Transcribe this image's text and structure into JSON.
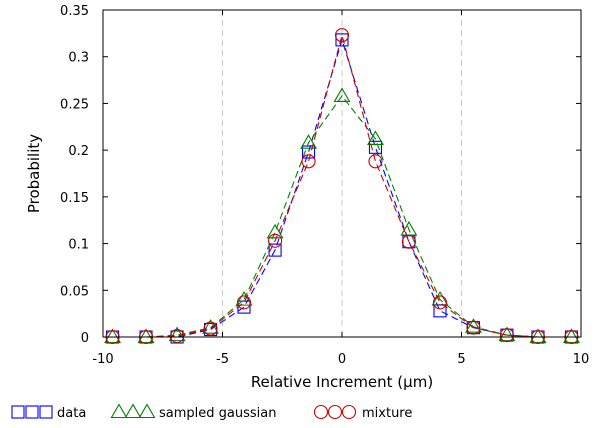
{
  "chart_data": {
    "type": "line",
    "title": "",
    "xlabel": "Relative Increment (μm)",
    "ylabel": "Probability",
    "xlim": [
      -10,
      10
    ],
    "ylim": [
      0,
      0.35
    ],
    "xticks": [
      -10,
      -5,
      0,
      5,
      10
    ],
    "xtick_labels": [
      "-10",
      "-5",
      "0",
      "5",
      "10"
    ],
    "yticks": [
      0,
      0.05,
      0.1,
      0.15,
      0.2,
      0.25,
      0.3,
      0.35
    ],
    "ytick_labels": [
      "0",
      "0.05",
      "0.1",
      "0.15",
      "0.2",
      "0.25",
      "0.3",
      "0.35"
    ],
    "grid": {
      "vertical": true,
      "horizontal": false
    },
    "legend_position": "bottom",
    "x": [
      -9.6,
      -8.2,
      -6.9,
      -5.5,
      -4.1,
      -2.8,
      -1.4,
      0,
      1.4,
      2.8,
      4.1,
      5.5,
      6.9,
      8.2,
      9.6
    ],
    "series": [
      {
        "name": "data",
        "marker": "square",
        "color": "#0000ff",
        "values": [
          0.0,
          0.0,
          0.0,
          0.008,
          0.032,
          0.093,
          0.198,
          0.318,
          0.203,
          0.102,
          0.028,
          0.01,
          0.002,
          0.0,
          0.0
        ]
      },
      {
        "name": "sampled gaussian",
        "marker": "triangle",
        "color": "#008000",
        "values": [
          0.0,
          0.0,
          0.002,
          0.01,
          0.04,
          0.112,
          0.208,
          0.258,
          0.212,
          0.115,
          0.04,
          0.011,
          0.002,
          0.0,
          0.0
        ]
      },
      {
        "name": "mixture",
        "marker": "circle",
        "color": "#cc0000",
        "values": [
          0.0,
          0.0,
          0.001,
          0.009,
          0.037,
          0.103,
          0.188,
          0.323,
          0.188,
          0.102,
          0.037,
          0.01,
          0.002,
          0.0,
          0.0
        ]
      }
    ]
  }
}
